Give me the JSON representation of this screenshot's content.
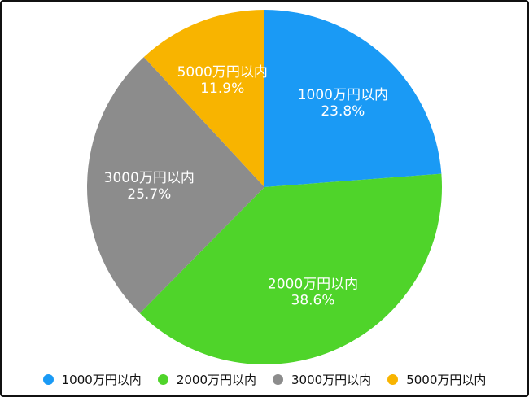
{
  "chart_data": {
    "type": "pie",
    "start_angle": "top",
    "direction": "clockwise",
    "slices": [
      {
        "label": "1000万円以内",
        "value": 23.8,
        "value_label": "23.8%",
        "color": "#1a9af5"
      },
      {
        "label": "2000万円以内",
        "value": 38.6,
        "value_label": "38.6%",
        "color": "#4fd42a"
      },
      {
        "label": "3000万円以内",
        "value": 25.7,
        "value_label": "25.7%",
        "color": "#8c8c8c"
      },
      {
        "label": "5000万円以内",
        "value": 11.9,
        "value_label": "11.9%",
        "color": "#f8b400"
      }
    ],
    "legend": {
      "position": "bottom"
    }
  }
}
